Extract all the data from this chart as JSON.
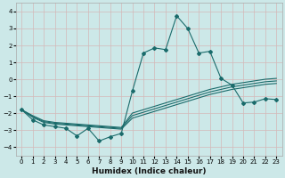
{
  "xlabel": "Humidex (Indice chaleur)",
  "xlim": [
    -0.5,
    23.5
  ],
  "ylim": [
    -4.5,
    4.5
  ],
  "yticks": [
    -4,
    -3,
    -2,
    -1,
    0,
    1,
    2,
    3,
    4
  ],
  "xticks": [
    0,
    1,
    2,
    3,
    4,
    5,
    6,
    7,
    8,
    9,
    10,
    11,
    12,
    13,
    14,
    15,
    16,
    17,
    18,
    19,
    20,
    21,
    22,
    23
  ],
  "background_color": "#cce8e8",
  "grid_color": "#b8d4d4",
  "line_color": "#1a6b6b",
  "line1_y": [
    -1.8,
    -2.4,
    -2.7,
    -2.8,
    -2.9,
    -3.35,
    -2.9,
    -3.65,
    -3.4,
    -3.2,
    -0.7,
    1.55,
    1.85,
    1.75,
    3.75,
    3.0,
    1.55,
    1.65,
    0.05,
    -0.35,
    -1.4,
    -1.35,
    -1.15,
    -1.2
  ],
  "line2_y": [
    -1.8,
    -2.25,
    -2.55,
    -2.65,
    -2.7,
    -2.75,
    -2.8,
    -2.85,
    -2.9,
    -2.95,
    -2.3,
    -2.1,
    -1.9,
    -1.7,
    -1.5,
    -1.3,
    -1.1,
    -0.9,
    -0.75,
    -0.6,
    -0.5,
    -0.4,
    -0.3,
    -0.25
  ],
  "line3_y": [
    -1.8,
    -2.2,
    -2.5,
    -2.6,
    -2.65,
    -2.7,
    -2.75,
    -2.8,
    -2.85,
    -2.9,
    -2.15,
    -1.95,
    -1.75,
    -1.55,
    -1.35,
    -1.15,
    -0.95,
    -0.75,
    -0.6,
    -0.45,
    -0.35,
    -0.25,
    -0.15,
    -0.1
  ],
  "line4_y": [
    -1.8,
    -2.15,
    -2.45,
    -2.55,
    -2.6,
    -2.65,
    -2.7,
    -2.75,
    -2.8,
    -2.85,
    -2.0,
    -1.8,
    -1.6,
    -1.4,
    -1.2,
    -1.0,
    -0.8,
    -0.6,
    -0.45,
    -0.3,
    -0.2,
    -0.1,
    0.0,
    0.05
  ]
}
